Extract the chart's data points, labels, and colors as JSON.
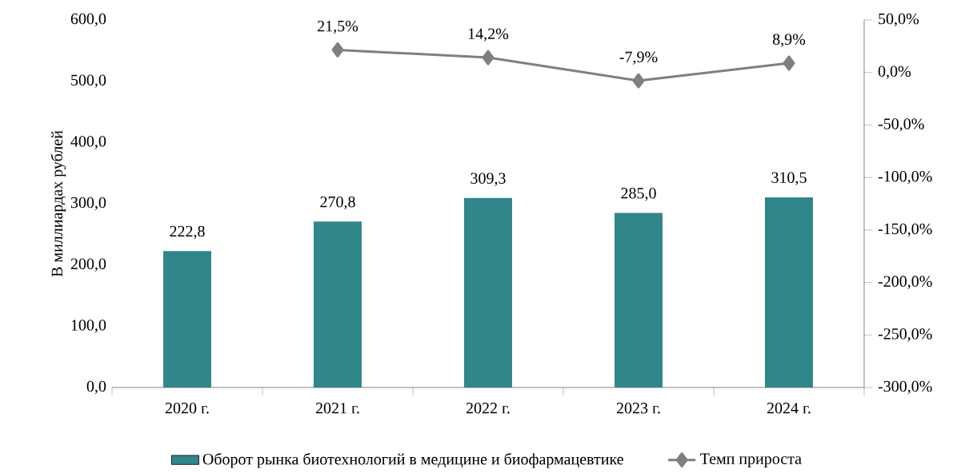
{
  "chart_data": {
    "type": "bar",
    "ylabel": "В миллиардах рублей",
    "categories": [
      "2020 г.",
      "2021 г.",
      "2022 г.",
      "2023 г.",
      "2024 г."
    ],
    "series": [
      {
        "name": "Оборот рынка биотехнологий в медицине и биофармацевтике",
        "color": "#31868a",
        "values": [
          222.8,
          270.8,
          309.3,
          285.0,
          310.5
        ],
        "value_labels": [
          "222,8",
          "270,8",
          "309,3",
          "285,0",
          "310,5"
        ]
      },
      {
        "name": "Темп прироста",
        "type": "line",
        "axis": "y2",
        "color": "#7f7f7f",
        "values": [
          null,
          21.5,
          14.2,
          -7.9,
          8.9
        ],
        "value_labels": [
          null,
          "21,5%",
          "14,2%",
          "-7,9%",
          "8,9%"
        ]
      }
    ],
    "ylim": [
      0,
      600
    ],
    "yticks": [
      {
        "value": 0,
        "label": "0,0"
      },
      {
        "value": 100,
        "label": "100,0"
      },
      {
        "value": 200,
        "label": "200,0"
      },
      {
        "value": 300,
        "label": "300,0"
      },
      {
        "value": 400,
        "label": "400,0"
      },
      {
        "value": 500,
        "label": "500,0"
      },
      {
        "value": 600,
        "label": "600,0"
      }
    ],
    "y2lim": [
      -300,
      50
    ],
    "y2ticks": [
      {
        "value": -300,
        "label": "-300,0%"
      },
      {
        "value": -250,
        "label": "-250,0%"
      },
      {
        "value": -200,
        "label": "-200,0%"
      },
      {
        "value": -150,
        "label": "-150,0%"
      },
      {
        "value": -100,
        "label": "-100,0%"
      },
      {
        "value": -50,
        "label": "-50,0%"
      },
      {
        "value": 0,
        "label": "0,0%"
      },
      {
        "value": 50,
        "label": "50,0%"
      }
    ],
    "marker": "diamond",
    "legend": "bottom",
    "grid": false
  }
}
